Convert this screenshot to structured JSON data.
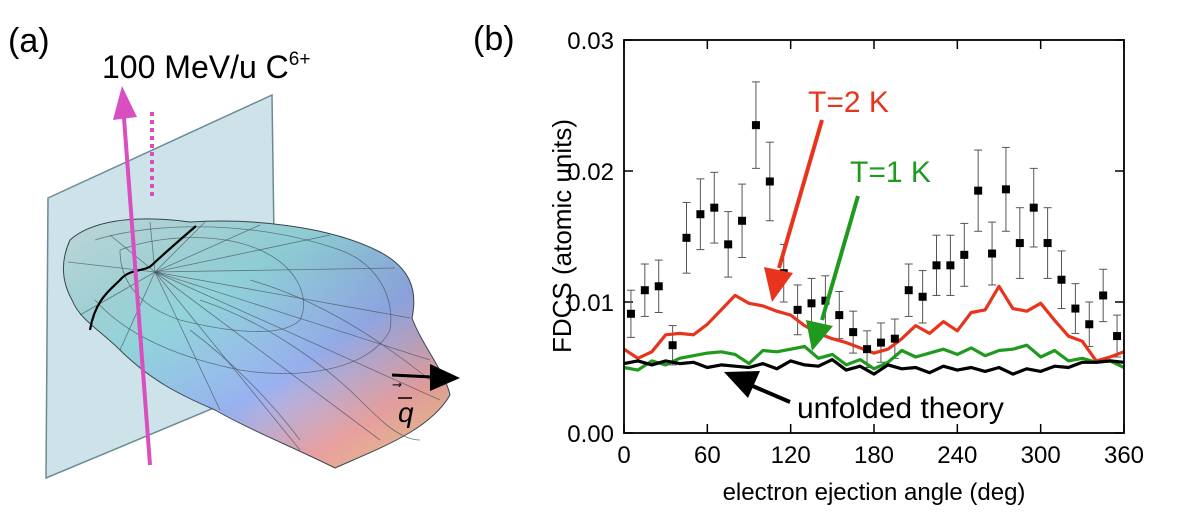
{
  "panel_a": {
    "label": "(a)",
    "beam_text": "100 MeV/u C",
    "beam_superscript": "6+",
    "q_label": "q",
    "colors": {
      "beam": "#d94fbf",
      "plane": "#bcd8e2",
      "q_arrow": "#000000"
    }
  },
  "chart_data": {
    "type": "scatter",
    "panel_label": "(b)",
    "xlabel": "electron ejection angle (deg)",
    "ylabel": "FDCS (atomic units)",
    "xlim": [
      0,
      360
    ],
    "ylim": [
      0,
      0.03
    ],
    "xticks": [
      0,
      60,
      120,
      180,
      240,
      300,
      360
    ],
    "yticks": [
      "0.00",
      "0.01",
      "0.02",
      "0.03"
    ],
    "grid": false,
    "series": [
      {
        "kind": "points_with_errorbars",
        "color": "#000000",
        "x": [
          5,
          15,
          25,
          35,
          45,
          55,
          65,
          75,
          85,
          95,
          105,
          115,
          125,
          135,
          145,
          155,
          165,
          175,
          185,
          195,
          205,
          215,
          225,
          235,
          245,
          255,
          265,
          275,
          285,
          295,
          305,
          315,
          325,
          335,
          345,
          355
        ],
        "y": [
          0.0091,
          0.0109,
          0.0112,
          0.0067,
          0.0149,
          0.0167,
          0.0172,
          0.0144,
          0.0162,
          0.0235,
          0.0192,
          0.0122,
          0.0094,
          0.0099,
          0.0101,
          0.009,
          0.0077,
          0.0064,
          0.0069,
          0.0072,
          0.0109,
          0.0104,
          0.0128,
          0.0128,
          0.0136,
          0.0185,
          0.0137,
          0.0186,
          0.0145,
          0.0172,
          0.0145,
          0.0117,
          0.0095,
          0.0083,
          0.0105,
          0.0074
        ],
        "err": [
          0.0018,
          0.002,
          0.002,
          0.0015,
          0.0027,
          0.0027,
          0.0027,
          0.0025,
          0.0028,
          0.0033,
          0.003,
          0.0022,
          0.0019,
          0.0019,
          0.0019,
          0.0018,
          0.0016,
          0.0014,
          0.0015,
          0.0015,
          0.002,
          0.002,
          0.0023,
          0.0023,
          0.0024,
          0.0031,
          0.0024,
          0.0032,
          0.0027,
          0.003,
          0.0027,
          0.0022,
          0.0019,
          0.0017,
          0.002,
          0.0016
        ]
      },
      {
        "kind": "line",
        "color": "#e8341c",
        "x": [
          0,
          10,
          20,
          30,
          40,
          50,
          60,
          70,
          80,
          90,
          100,
          110,
          120,
          130,
          140,
          150,
          160,
          170,
          180,
          190,
          200,
          210,
          220,
          230,
          240,
          250,
          260,
          270,
          280,
          290,
          300,
          310,
          320,
          330,
          340,
          350,
          360
        ],
        "y": [
          0.0064,
          0.0057,
          0.0062,
          0.0075,
          0.0076,
          0.0075,
          0.0083,
          0.0094,
          0.0105,
          0.0099,
          0.0097,
          0.0093,
          0.009,
          0.0082,
          0.0076,
          0.0072,
          0.0069,
          0.0065,
          0.0061,
          0.0064,
          0.0072,
          0.0082,
          0.0076,
          0.0085,
          0.0078,
          0.0092,
          0.0094,
          0.0112,
          0.0095,
          0.0093,
          0.0099,
          0.0086,
          0.0074,
          0.007,
          0.0055,
          0.0058,
          0.0062
        ]
      },
      {
        "kind": "line",
        "color": "#1f9a1f",
        "x": [
          0,
          10,
          20,
          30,
          40,
          50,
          60,
          70,
          80,
          90,
          100,
          110,
          120,
          130,
          140,
          150,
          160,
          170,
          180,
          190,
          200,
          210,
          220,
          230,
          240,
          250,
          260,
          270,
          280,
          290,
          300,
          310,
          320,
          330,
          340,
          350,
          360
        ],
        "y": [
          0.005,
          0.0048,
          0.0055,
          0.0052,
          0.0057,
          0.0059,
          0.0061,
          0.0062,
          0.006,
          0.0053,
          0.0063,
          0.0062,
          0.0064,
          0.0066,
          0.0057,
          0.006,
          0.0052,
          0.0056,
          0.0049,
          0.0054,
          0.0063,
          0.0058,
          0.0061,
          0.0064,
          0.006,
          0.0065,
          0.0059,
          0.0063,
          0.0064,
          0.0067,
          0.0058,
          0.0063,
          0.0055,
          0.0057,
          0.0054,
          0.0055,
          0.005
        ]
      },
      {
        "kind": "line",
        "color": "#000000",
        "x": [
          0,
          10,
          20,
          30,
          40,
          50,
          60,
          70,
          80,
          90,
          100,
          110,
          120,
          130,
          140,
          150,
          160,
          170,
          180,
          190,
          200,
          210,
          220,
          230,
          240,
          250,
          260,
          270,
          280,
          290,
          300,
          310,
          320,
          330,
          340,
          350,
          360
        ],
        "y": [
          0.0053,
          0.0055,
          0.0052,
          0.0055,
          0.0053,
          0.0054,
          0.005,
          0.0052,
          0.0051,
          0.005,
          0.0053,
          0.0049,
          0.0055,
          0.0052,
          0.0051,
          0.0056,
          0.0048,
          0.0051,
          0.0045,
          0.0052,
          0.0049,
          0.005,
          0.0046,
          0.0051,
          0.0048,
          0.005,
          0.0047,
          0.005,
          0.0045,
          0.0049,
          0.0047,
          0.0051,
          0.005,
          0.0054,
          0.0054,
          0.0055,
          0.0054
        ]
      }
    ],
    "annotations": [
      {
        "text": "T=2 K",
        "color": "#e8341c"
      },
      {
        "text": "T=1 K",
        "color": "#1f9a1f"
      },
      {
        "text": "unfolded theory",
        "color": "#000000"
      }
    ]
  }
}
